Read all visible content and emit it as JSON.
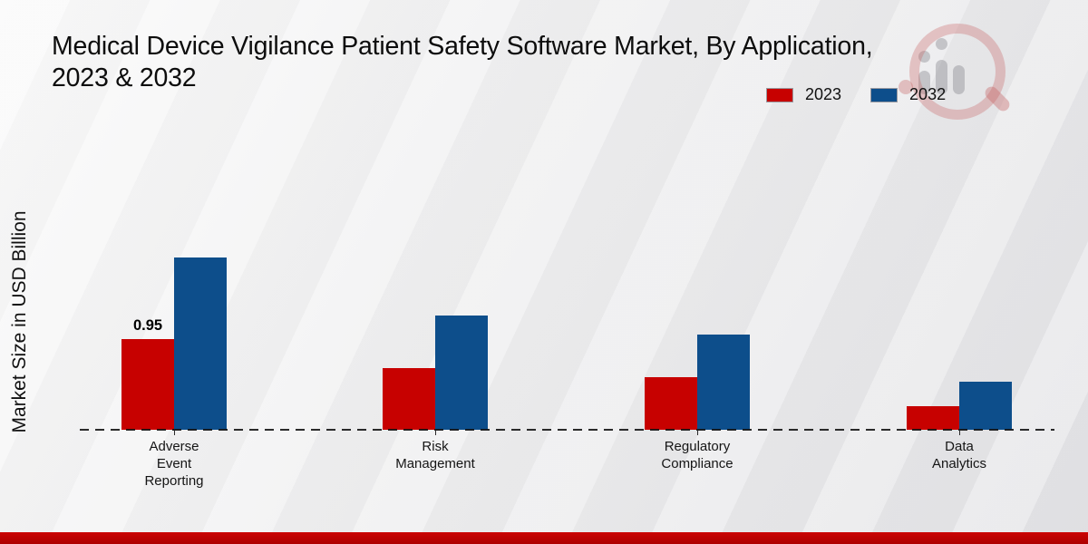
{
  "title": {
    "line1": "Medical Device Vigilance Patient Safety Software Market, By Application,",
    "line2": "2023 & 2032"
  },
  "y_axis_label": "Market Size in USD Billion",
  "legend": [
    {
      "label": "2023",
      "color": "#c70100"
    },
    {
      "label": "2032",
      "color": "#0d4e8b"
    }
  ],
  "chart_data": {
    "type": "bar",
    "title": "Medical Device Vigilance Patient Safety Software Market, By Application, 2023 & 2032",
    "ylabel": "Market Size in USD Billion",
    "categories": [
      "Adverse Event Reporting",
      "Risk Management",
      "Regulatory Compliance",
      "Data Analytics"
    ],
    "categories_multiline": [
      "Adverse\nEvent\nReporting",
      "Risk\nManagement",
      "Regulatory\nCompliance",
      "Data\nAnalytics"
    ],
    "series": [
      {
        "name": "2023",
        "color": "#c70100",
        "values": [
          0.95,
          0.65,
          0.55,
          0.25
        ]
      },
      {
        "name": "2032",
        "color": "#0d4e8b",
        "values": [
          1.8,
          1.2,
          1.0,
          0.5
        ]
      }
    ],
    "annotations": [
      {
        "series": "2023",
        "category_index": 0,
        "text": "0.95"
      }
    ],
    "ylim": [
      0,
      2.0
    ],
    "grid": false,
    "legend_position": "top-right",
    "baseline_style": "dashed",
    "bar_unit": "USD Billion"
  },
  "footer": {
    "band_color": "#b50404"
  },
  "watermark": {
    "name": "market-research-magnifier-logo"
  }
}
